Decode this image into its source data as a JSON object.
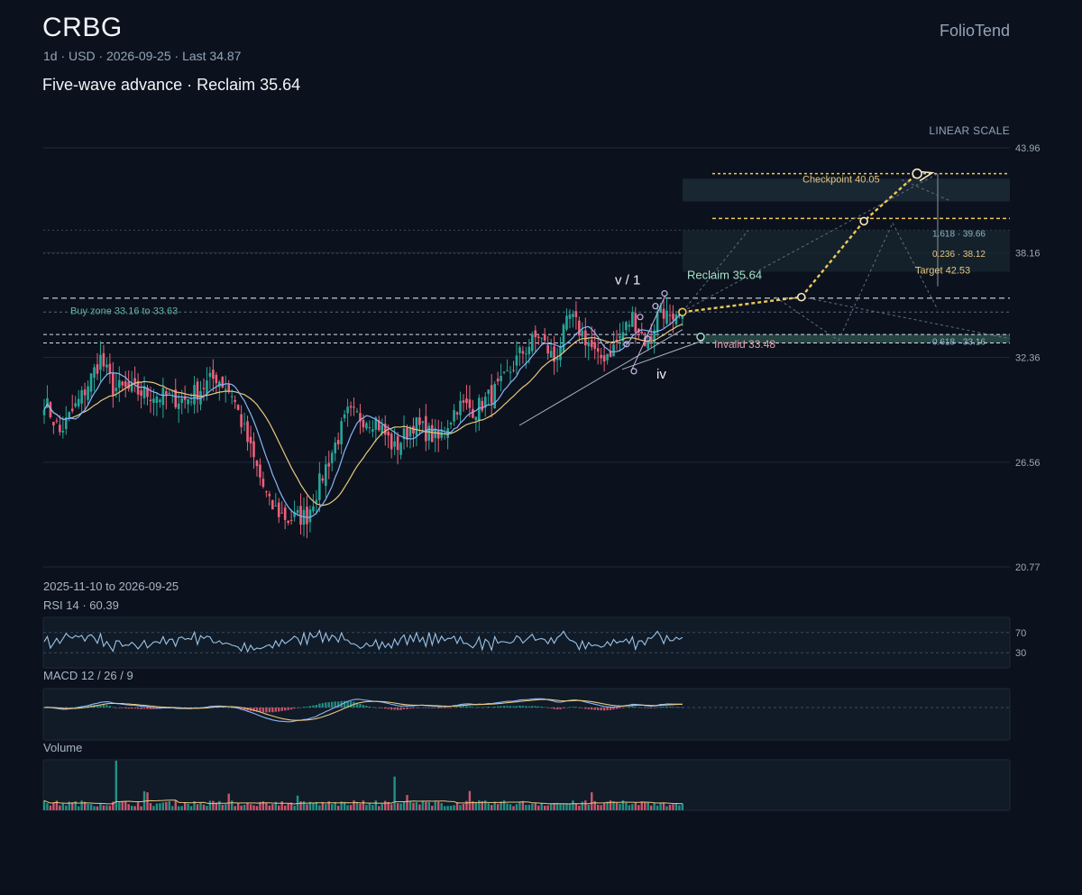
{
  "header": {
    "ticker": "CRBG",
    "meta": "1d · USD · 2026-09-25 · Last 34.87",
    "headline": "Five-wave advance · Reclaim 35.64",
    "brand": "FolioTend",
    "scale_label": "LINEAR SCALE"
  },
  "colors": {
    "background": "#0b121d",
    "up": "#26a69a",
    "down": "#ef5f7a",
    "ma_fast": "#8ab4f8",
    "ma_slow": "#e8c77f",
    "projection": "#f0c85a",
    "rsi_line": "#9cc3e8",
    "grid": "#1f2a37"
  },
  "footer": {
    "date_range": "2025-11-10 to 2026-09-25",
    "rsi_title": "RSI 14 · 60.39",
    "macd_title": "MACD 12 / 26 / 9",
    "volume_title": "Volume"
  },
  "chart_data": {
    "type": "candlestick",
    "y_ticks": [
      "43.96",
      "38.16",
      "32.36",
      "26.56",
      "20.77"
    ],
    "ylim": [
      20.77,
      43.96
    ],
    "x_range": [
      "2025-11-10",
      "2026-09-25"
    ],
    "last_price": 34.87,
    "anchors": [
      [
        0,
        30.0
      ],
      [
        5,
        28.2
      ],
      [
        12,
        30.2
      ],
      [
        18,
        32.3
      ],
      [
        22,
        30.7
      ],
      [
        35,
        30.3
      ],
      [
        45,
        30.0
      ],
      [
        55,
        31.3
      ],
      [
        60,
        30.4
      ],
      [
        66,
        27.2
      ],
      [
        72,
        24.2
      ],
      [
        78,
        23.4
      ],
      [
        84,
        23.6
      ],
      [
        90,
        26.3
      ],
      [
        97,
        29.2
      ],
      [
        106,
        28.9
      ],
      [
        112,
        27.3
      ],
      [
        118,
        28.7
      ],
      [
        126,
        27.8
      ],
      [
        132,
        29.7
      ],
      [
        138,
        29.5
      ],
      [
        146,
        30.8
      ],
      [
        152,
        32.5
      ],
      [
        158,
        33.6
      ],
      [
        163,
        32.2
      ],
      [
        168,
        34.6
      ],
      [
        174,
        33.2
      ],
      [
        177,
        32.2
      ],
      [
        182,
        32.9
      ],
      [
        188,
        34.6
      ],
      [
        193,
        33.0
      ],
      [
        197,
        35.3
      ],
      [
        201,
        34.0
      ],
      [
        204,
        34.87
      ]
    ],
    "levels": [
      {
        "name": "Checkpoint",
        "value": 40.05,
        "label": "Checkpoint 40.05"
      },
      {
        "name": "Reclaim",
        "value": 35.64,
        "label": "Reclaim 35.64"
      },
      {
        "name": "Invalid",
        "value": 33.48,
        "label": "Invalid 33.48"
      },
      {
        "name": "Target",
        "value": 42.53,
        "label": "Target 42.53"
      }
    ],
    "fib_levels": [
      {
        "ratio": "1.618",
        "value": 39.66,
        "label": "1.618 · 39.66"
      },
      {
        "ratio": "0.236",
        "value": 38.12,
        "label": "0.236 · 38.12"
      },
      {
        "ratio": "0.618",
        "value": 33.16,
        "label": "0.618 · 33.16"
      }
    ],
    "buy_zone": {
      "low": 33.16,
      "high": 33.63,
      "label": "Buy zone 33.16 to 33.63"
    },
    "wave_labels": [
      {
        "text": "v / 1",
        "price": 36.7
      },
      {
        "text": "iv",
        "price": 31.5
      }
    ],
    "projection_path": [
      {
        "bar": 204,
        "value": 34.87
      },
      {
        "bar": 242,
        "value": 35.7
      },
      {
        "bar": 262,
        "value": 39.9
      },
      {
        "bar": 279,
        "value": 42.53
      }
    ],
    "rsi": {
      "period": 14,
      "value": 60.39,
      "levels": [
        "70",
        "30"
      ]
    },
    "macd": {
      "fast": 12,
      "slow": 26,
      "signal": 9
    },
    "ma_periods": [
      9,
      21
    ]
  }
}
